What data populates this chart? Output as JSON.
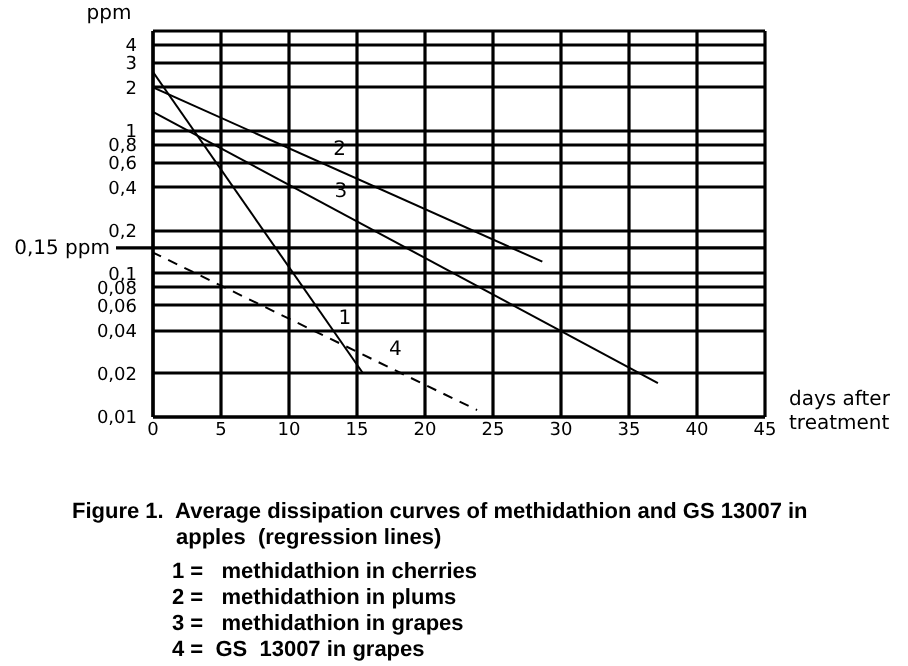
{
  "chart_data": {
    "type": "line",
    "title": "Figure 1.  Average dissipation curves of methidathion and GS 13007 in apples  (regression lines)",
    "xlabel": "days after treatment",
    "ylabel": "ppm",
    "log": "y",
    "grid": true,
    "xlim": [
      0,
      45
    ],
    "xticks": [
      0,
      5,
      10,
      15,
      20,
      25,
      30,
      35,
      40,
      45
    ],
    "ylim": [
      0.01,
      5
    ],
    "yticks": [
      {
        "value": 0.01,
        "label": "0,01"
      },
      {
        "value": 0.02,
        "label": "0,02"
      },
      {
        "value": 0.04,
        "label": "0,04"
      },
      {
        "value": 0.06,
        "label": "0,06"
      },
      {
        "value": 0.08,
        "label": "0,08"
      },
      {
        "value": 0.1,
        "label": "0,1"
      },
      {
        "value": 0.2,
        "label": "0,2"
      },
      {
        "value": 0.4,
        "label": "0,4"
      },
      {
        "value": 0.6,
        "label": "0,6"
      },
      {
        "value": 0.8,
        "label": "0,8"
      },
      1,
      2,
      3,
      4,
      {
        "value": 5,
        "label": null
      }
    ],
    "ref_lines": [
      {
        "axis": "y",
        "value": 0.15,
        "label": "0,15 ppm"
      }
    ],
    "series": [
      {
        "color": "#000000",
        "line_style": "solid",
        "x": [
          0,
          15.5
        ],
        "values": [
          2.6,
          0.02
        ]
      },
      {
        "color": "#000000",
        "line_style": "solid",
        "x": [
          0,
          28.7
        ],
        "values": [
          2.0,
          0.12
        ]
      },
      {
        "color": "#000000",
        "line_style": "solid",
        "x": [
          0,
          37.2
        ],
        "values": [
          1.35,
          0.017
        ]
      },
      {
        "color": "#000000",
        "line_style": "dashed",
        "x": [
          0,
          23.9
        ],
        "values": [
          0.14,
          0.011
        ]
      }
    ],
    "annotations": [
      {
        "text": "1",
        "x": 13.6,
        "y": 0.036
      },
      {
        "text": "2",
        "x": 13.2,
        "y": 0.55
      },
      {
        "text": "3",
        "x": 13.3,
        "y": 0.28
      },
      {
        "text": "4",
        "x": 17.3,
        "y": 0.022
      },
      "1 =   methidathion in cherries",
      "2 =   methidathion in plums",
      "3 =   methidathion in grapes",
      "4 =  GS  13007 in grapes"
    ]
  }
}
